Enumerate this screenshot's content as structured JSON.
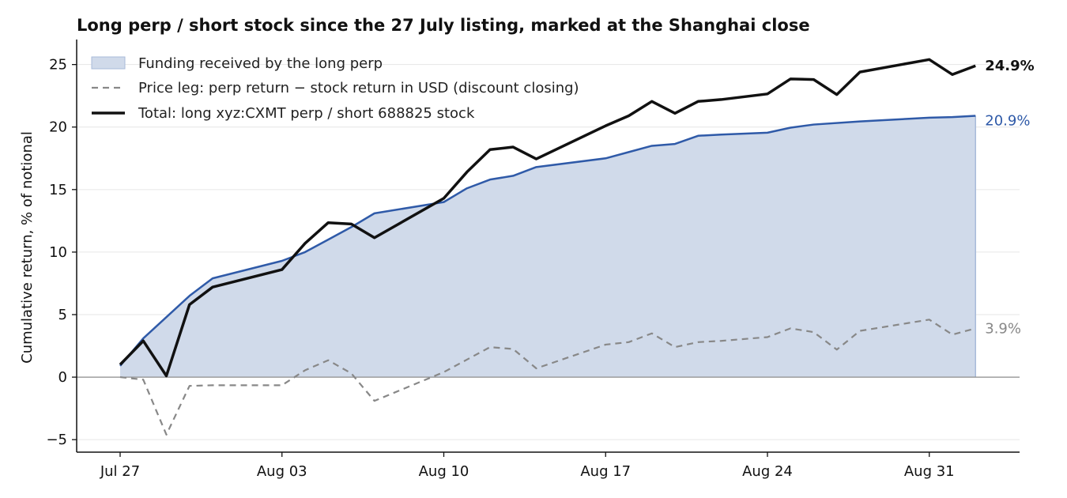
{
  "chart_data": {
    "type": "line",
    "title": "Long perp / short stock since the 27 July listing, marked at the Shanghai close",
    "ylabel": "Cumulative return, % of notional",
    "xlabel": "",
    "x_start": "2025-07-27",
    "ylim": [
      -6,
      27
    ],
    "yticks": [
      -5,
      0,
      5,
      10,
      15,
      20,
      25
    ],
    "ytick_labels": [
      "−5",
      "0",
      "5",
      "10",
      "15",
      "20",
      "25"
    ],
    "xticks": [
      0,
      7,
      14,
      21,
      28,
      35
    ],
    "xtick_labels": [
      "Jul 27",
      "Aug 03",
      "Aug 10",
      "Aug 17",
      "Aug 24",
      "Aug 31"
    ],
    "grid": "horizontal",
    "legend_position": "top-left",
    "series": [
      {
        "name": "Funding received by the long perp",
        "kind": "area",
        "color": "#2f5aa8",
        "fill": "#d0daea",
        "end_label": "20.9%",
        "x": [
          0,
          1,
          2,
          3,
          4,
          7,
          8,
          9,
          10,
          11,
          14,
          15,
          16,
          17,
          18,
          21,
          22,
          23,
          24,
          25,
          26,
          28,
          29,
          30,
          32,
          35,
          36,
          37
        ],
        "y": [
          0.9,
          3.1,
          4.8,
          6.5,
          7.9,
          9.3,
          10.0,
          11.0,
          12.0,
          13.1,
          14.0,
          15.1,
          15.8,
          16.1,
          16.8,
          17.5,
          18.0,
          18.5,
          18.65,
          19.3,
          19.4,
          19.55,
          19.95,
          20.2,
          20.45,
          20.75,
          20.8,
          20.9
        ]
      },
      {
        "name": "Price leg: perp return − stock return in USD (discount closing)",
        "kind": "dashed",
        "color": "#888888",
        "end_label": "3.9%",
        "x": [
          0,
          1,
          2,
          3,
          4,
          7,
          8,
          9,
          10,
          11,
          14,
          15,
          16,
          17,
          18,
          21,
          22,
          23,
          24,
          25,
          26,
          28,
          29,
          30,
          31,
          32,
          35,
          36,
          37
        ],
        "y": [
          0.0,
          -0.2,
          -4.6,
          -0.7,
          -0.65,
          -0.65,
          0.55,
          1.35,
          0.3,
          -1.9,
          0.4,
          1.4,
          2.4,
          2.25,
          0.7,
          2.6,
          2.8,
          3.5,
          2.4,
          2.8,
          2.9,
          3.2,
          3.9,
          3.6,
          2.2,
          3.7,
          4.6,
          3.4,
          3.9
        ]
      },
      {
        "name": "Total: long xyz:CXMT perp / short 688825 stock",
        "kind": "solid",
        "color": "#111111",
        "end_label": "24.9%",
        "x": [
          0,
          1,
          2,
          3,
          4,
          7,
          8,
          9,
          10,
          11,
          14,
          15,
          16,
          17,
          18,
          21,
          22,
          23,
          24,
          25,
          26,
          28,
          29,
          30,
          31,
          32,
          35,
          36,
          37
        ],
        "y": [
          1.0,
          2.9,
          0.1,
          5.8,
          7.2,
          8.6,
          10.7,
          12.35,
          12.25,
          11.15,
          14.3,
          16.4,
          18.2,
          18.4,
          17.45,
          20.1,
          20.9,
          22.05,
          21.1,
          22.05,
          22.2,
          22.65,
          23.85,
          23.8,
          22.6,
          24.4,
          25.4,
          24.2,
          24.9
        ]
      }
    ]
  }
}
